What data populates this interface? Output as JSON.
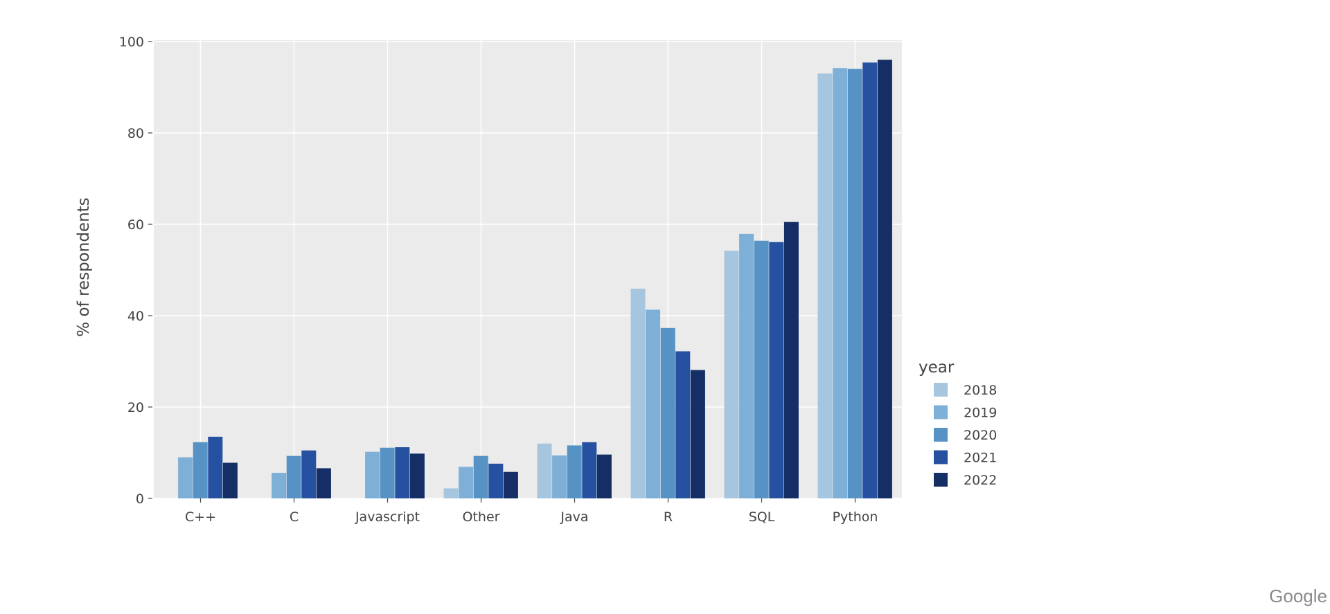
{
  "watermark": "Google",
  "colors": {
    "plot_bg": "#ebebeb",
    "grid": "#ffffff",
    "text": "#444444",
    "series": [
      "#a6c6df",
      "#7eb0d7",
      "#5792c5",
      "#2551a0",
      "#152f66"
    ]
  },
  "chart_data": {
    "type": "bar",
    "xlabel": "",
    "ylabel": "% of respondents",
    "ylim": [
      0,
      100
    ],
    "yticks": [
      0,
      20,
      40,
      60,
      80,
      100
    ],
    "grid": true,
    "legend_title": "year",
    "legend_position": "right",
    "categories": [
      "C++",
      "C",
      "Javascript",
      "Other",
      "Java",
      "R",
      "SQL",
      "Python"
    ],
    "series": [
      {
        "name": "2018",
        "values": [
          null,
          null,
          null,
          2.2,
          12.0,
          45.9,
          54.2,
          93.0
        ]
      },
      {
        "name": "2019",
        "values": [
          9.0,
          5.6,
          10.2,
          6.9,
          9.4,
          41.3,
          57.9,
          94.2
        ]
      },
      {
        "name": "2020",
        "values": [
          12.3,
          9.3,
          11.1,
          9.3,
          11.6,
          37.3,
          56.4,
          94.0
        ]
      },
      {
        "name": "2021",
        "values": [
          13.5,
          10.5,
          11.2,
          7.6,
          12.3,
          32.2,
          56.1,
          95.4
        ]
      },
      {
        "name": "2022",
        "values": [
          7.8,
          6.6,
          9.8,
          5.8,
          9.6,
          28.1,
          60.5,
          96.0
        ]
      }
    ]
  }
}
